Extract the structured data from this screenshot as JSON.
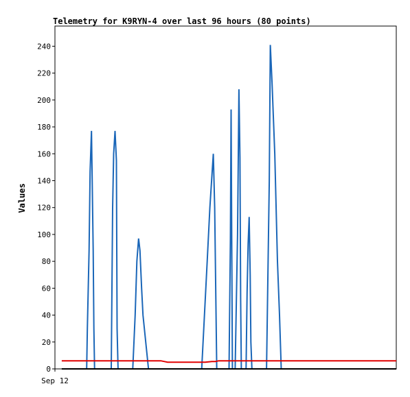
{
  "chart_data": {
    "type": "line",
    "title": "Telemetry for K9RYN-4 over last 96 hours (80 points)",
    "xlabel": "",
    "ylabel": "Values",
    "ylim": [
      0,
      255
    ],
    "yticks": [
      0,
      20,
      40,
      60,
      80,
      100,
      120,
      140,
      160,
      180,
      200,
      220,
      240
    ],
    "xlim": [
      0,
      100
    ],
    "xtick_labels": [
      {
        "x": 0,
        "label": "Sep 12"
      }
    ],
    "grid": false,
    "colors": {
      "blue": "#1a66b8",
      "red": "#e00000",
      "black": "#000000"
    },
    "series": [
      {
        "color": "#1a66b8",
        "x": [
          9.3,
          9.5,
          10.0,
          10.3,
          10.7,
          11.2,
          11.4,
          11.6,
          12.0,
          12.2,
          12.5,
          16.5,
          16.9,
          17.2,
          17.6,
          18.0,
          18.2,
          18.5,
          19.0,
          19.3,
          22.8,
          23.5,
          24.0,
          24.5,
          24.9,
          25.4,
          25.8,
          27.4,
          43.0,
          43.8,
          44.6,
          45.4,
          46.4,
          46.8,
          47.0,
          47.4,
          51.0,
          51.4,
          51.6,
          51.8,
          52.0,
          52.8,
          53.5,
          53.9,
          54.2,
          54.4,
          54.6,
          56.0,
          56.3,
          56.6,
          56.9,
          57.2,
          57.4,
          57.7,
          58.0,
          58.4,
          58.6,
          62.0,
          62.4,
          62.8,
          63.1,
          63.6,
          64.4,
          65.2,
          65.8,
          66.3,
          68.0,
          71.0
        ],
        "y": [
          0,
          30,
          88,
          147,
          177,
          88,
          30,
          0,
          0,
          0,
          0,
          0,
          120,
          160,
          177,
          155,
          30,
          0,
          0,
          0,
          0,
          40,
          80,
          97,
          88,
          60,
          40,
          0,
          0,
          40,
          80,
          120,
          160,
          120,
          80,
          0,
          0,
          97,
          193,
          97,
          0,
          0,
          100,
          208,
          157,
          52,
          0,
          0,
          57,
          93,
          113,
          70,
          20,
          0,
          0,
          0,
          0,
          0,
          70,
          140,
          241,
          213,
          160,
          80,
          40,
          0,
          0,
          0
        ]
      },
      {
        "color": "#e00000",
        "x": [
          2,
          30,
          31,
          32,
          33,
          42,
          43,
          44,
          46,
          47,
          48,
          50,
          70,
          100
        ],
        "y": [
          6,
          6,
          6,
          5.5,
          5,
          5,
          5,
          5,
          5.5,
          5.5,
          6,
          6,
          6,
          6
        ]
      },
      {
        "color": "#000000",
        "x": [
          2,
          100
        ],
        "y": [
          0,
          0
        ]
      }
    ]
  }
}
